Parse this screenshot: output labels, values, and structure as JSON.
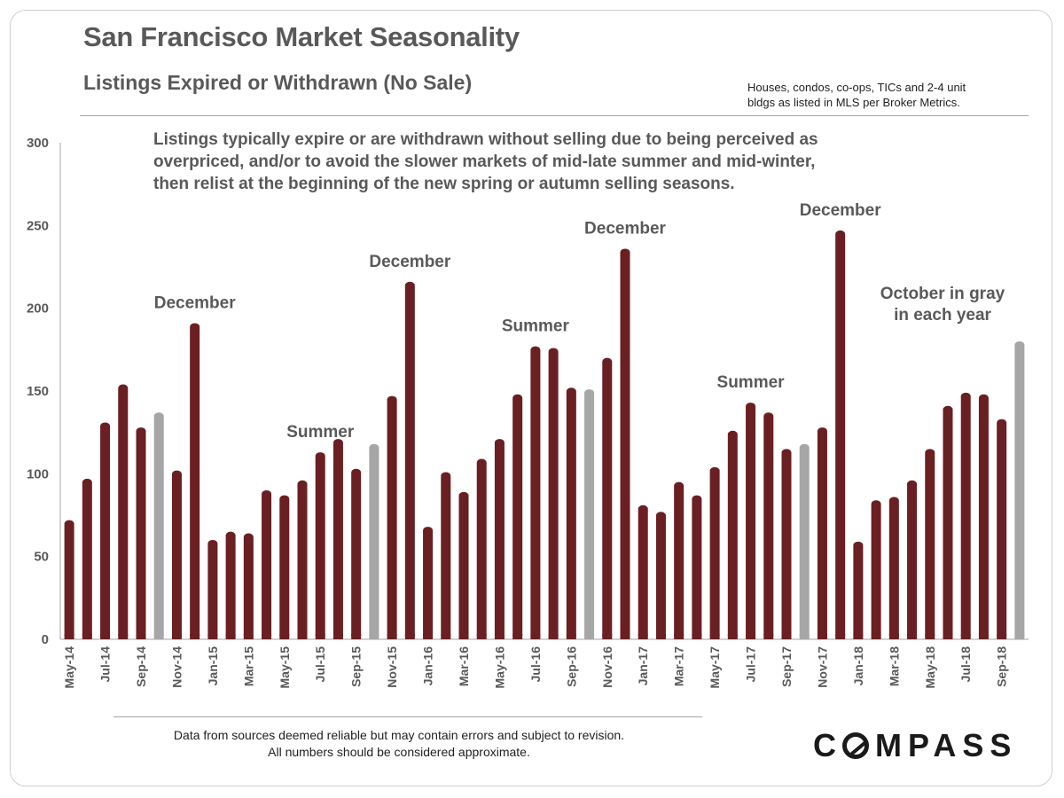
{
  "header": {
    "title": "San Francisco Market Seasonality",
    "subtitle": "Listings Expired or Withdrawn (No Sale)",
    "source_note_lines": [
      "Houses, condos, co-ops, TICs and 2-4 unit",
      "bldgs as listed in MLS per Broker Metrics."
    ]
  },
  "footer": {
    "disclaimer_lines": [
      "Data from sources deemed reliable but may contain errors and subject to revision.",
      "All numbers should be considered approximate."
    ],
    "logo_text": "COMPASS"
  },
  "chart_data": {
    "type": "bar",
    "ylim": [
      0,
      300
    ],
    "yticks": [
      0,
      50,
      100,
      150,
      200,
      250,
      300
    ],
    "categories": [
      "May-14",
      "Jun-14",
      "Jul-14",
      "Aug-14",
      "Sep-14",
      "Oct-14",
      "Nov-14",
      "Dec-14",
      "Jan-15",
      "Feb-15",
      "Mar-15",
      "Apr-15",
      "May-15",
      "Jun-15",
      "Jul-15",
      "Aug-15",
      "Sep-15",
      "Oct-15",
      "Nov-15",
      "Dec-15",
      "Jan-16",
      "Feb-16",
      "Mar-16",
      "Apr-16",
      "May-16",
      "Jun-16",
      "Jul-16",
      "Aug-16",
      "Sep-16",
      "Oct-16",
      "Nov-16",
      "Dec-16",
      "Jan-17",
      "Feb-17",
      "Mar-17",
      "Apr-17",
      "May-17",
      "Jun-17",
      "Jul-17",
      "Aug-17",
      "Sep-17",
      "Oct-17",
      "Nov-17",
      "Dec-17",
      "Jan-18",
      "Feb-18",
      "Mar-18",
      "Apr-18",
      "May-18",
      "Jun-18",
      "Jul-18",
      "Aug-18",
      "Sep-18",
      "Oct-18"
    ],
    "tick_labels": [
      "May-14",
      "",
      "Jul-14",
      "",
      "Sep-14",
      "",
      "Nov-14",
      "",
      "Jan-15",
      "",
      "Mar-15",
      "",
      "May-15",
      "",
      "Jul-15",
      "",
      "Sep-15",
      "",
      "Nov-15",
      "",
      "Jan-16",
      "",
      "Mar-16",
      "",
      "May-16",
      "",
      "Jul-16",
      "",
      "Sep-16",
      "",
      "Nov-16",
      "",
      "Jan-17",
      "",
      "Mar-17",
      "",
      "May-17",
      "",
      "Jul-17",
      "",
      "Sep-17",
      "",
      "Nov-17",
      "",
      "Jan-18",
      "",
      "Mar-18",
      "",
      "May-18",
      "",
      "Jul-18",
      "",
      "Sep-18",
      ""
    ],
    "values": [
      72,
      97,
      131,
      154,
      128,
      137,
      102,
      191,
      60,
      65,
      64,
      90,
      87,
      96,
      113,
      121,
      103,
      118,
      147,
      216,
      68,
      101,
      89,
      109,
      121,
      148,
      177,
      176,
      152,
      151,
      170,
      236,
      81,
      77,
      95,
      87,
      104,
      126,
      143,
      137,
      115,
      118,
      128,
      247,
      59,
      84,
      86,
      96,
      115,
      141,
      149,
      148,
      133,
      180
    ],
    "colors": {
      "default": "#6a1f23",
      "october": "#a6a6a6"
    },
    "highlight_month": "Oct",
    "annotation": "Listings typically expire or are withdrawn without selling due to being perceived as overpriced, and/or to avoid the slower markets of mid-late summer and mid-winter, then relist at the beginning of the new spring or autumn selling seasons.",
    "callouts": [
      {
        "lines": [
          "December"
        ],
        "x": "Dec-14"
      },
      {
        "lines": [
          "Summer"
        ],
        "x": "Jul-15"
      },
      {
        "lines": [
          "December"
        ],
        "x": "Dec-15"
      },
      {
        "lines": [
          "Summer"
        ],
        "x": "Jul-16"
      },
      {
        "lines": [
          "December"
        ],
        "x": "Dec-16"
      },
      {
        "lines": [
          "Summer"
        ],
        "x": "Jul-17"
      },
      {
        "lines": [
          "December"
        ],
        "x": "Dec-17"
      },
      {
        "lines": [
          "October in gray",
          "in each year"
        ],
        "x": "Jul-18"
      }
    ]
  }
}
